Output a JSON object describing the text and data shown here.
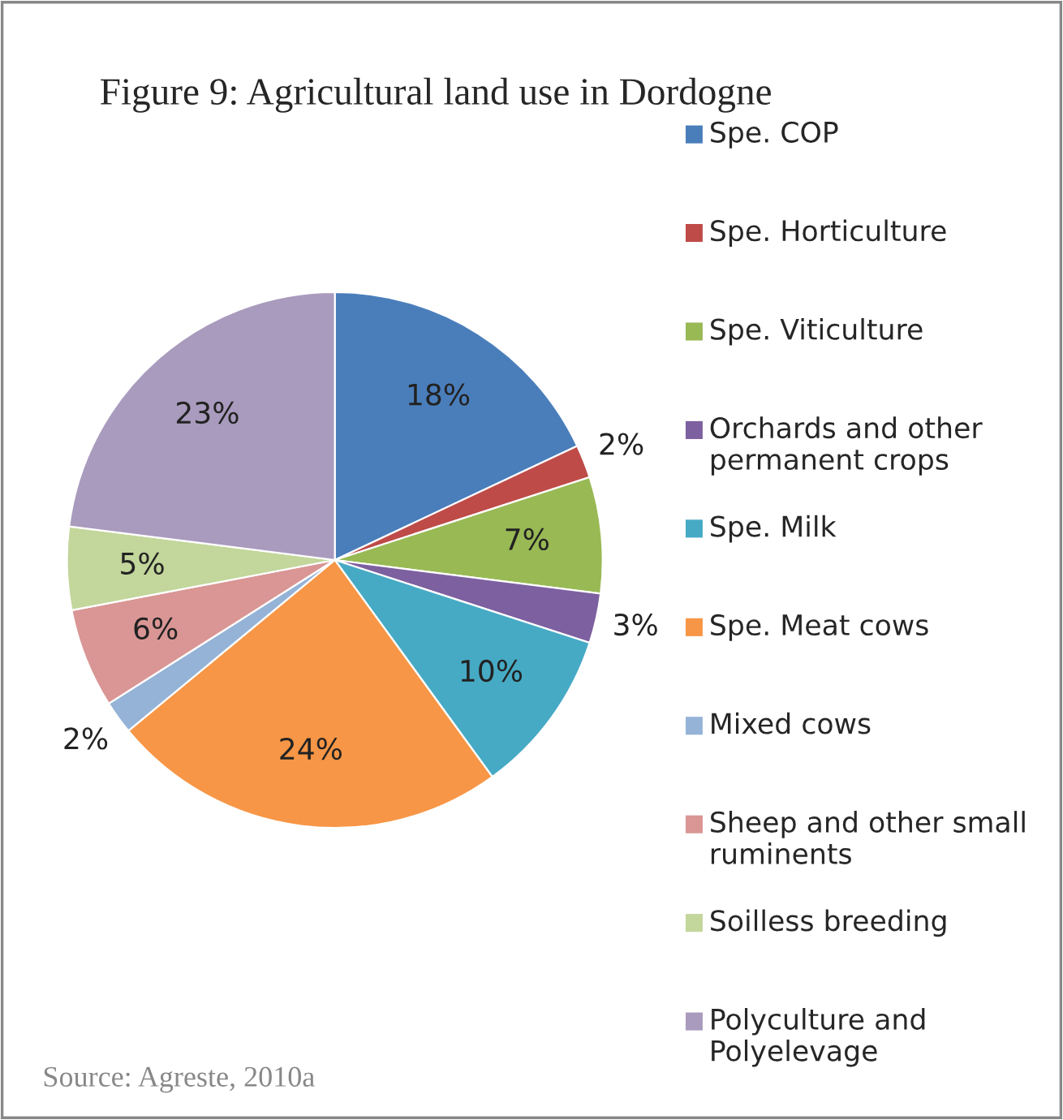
{
  "chart_data": {
    "type": "pie",
    "title": "Figure 9: Agricultural land use in Dordogne",
    "categories": [
      "Spe. COP",
      "Spe. Horticulture",
      "Spe. Viticulture",
      "Orchards and other permanent crops",
      "Spe. Milk",
      "Spe. Meat cows",
      "Mixed cows",
      "Sheep and other small ruminents",
      "Soilless breeding",
      "Polyculture and Polyelevage"
    ],
    "values": [
      18,
      2,
      7,
      3,
      10,
      24,
      2,
      6,
      5,
      23
    ],
    "colors": [
      "#4a7ebb",
      "#be4b48",
      "#98b954",
      "#7d60a0",
      "#46aac5",
      "#f79646",
      "#95b3d7",
      "#d99694",
      "#c3d69b",
      "#a99bbd"
    ],
    "value_labels": [
      "18%",
      "2%",
      "7%",
      "3%",
      "10%",
      "24%",
      "2%",
      "6%",
      "5%",
      "23%"
    ],
    "legend": "right",
    "annotations": [
      "Source: Agreste, 2010a"
    ]
  }
}
